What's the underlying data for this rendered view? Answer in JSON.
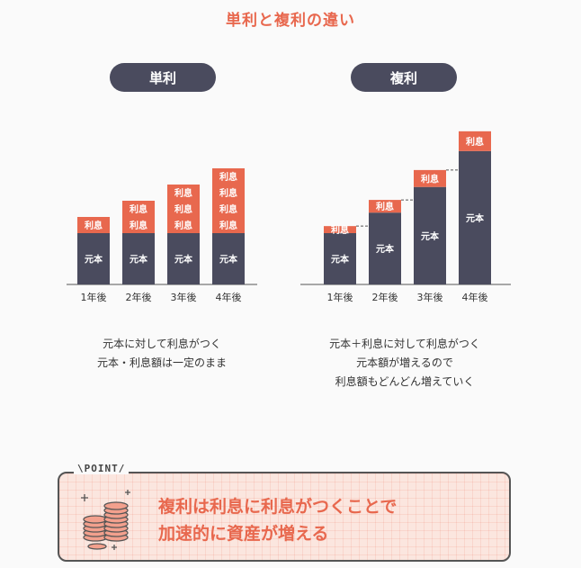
{
  "title": "単利と複利の違い",
  "panels": [
    {
      "label": "単利"
    },
    {
      "label": "複利"
    }
  ],
  "chart_data": [
    {
      "type": "bar",
      "title": "単利",
      "categories": [
        "1年後",
        "2年後",
        "3年後",
        "4年後"
      ],
      "series": [
        {
          "name": "元本",
          "values": [
            1,
            1,
            1,
            1
          ]
        },
        {
          "name": "利息",
          "values": [
            1,
            2,
            3,
            4
          ]
        }
      ],
      "principal_label": "元本",
      "interest_label": "利息"
    },
    {
      "type": "bar",
      "title": "複利",
      "categories": [
        "1年後",
        "2年後",
        "3年後",
        "4年後"
      ],
      "series": [
        {
          "name": "元本",
          "values": [
            1.0,
            1.4,
            1.9,
            2.6
          ]
        },
        {
          "name": "利息",
          "values": [
            0.25,
            0.45,
            0.6,
            0.7
          ]
        }
      ],
      "principal_label": "元本",
      "interest_label": "利息"
    }
  ],
  "captions": {
    "simple": [
      "元本に対して利息がつく",
      "元本・利息額は一定のまま"
    ],
    "compound": [
      "元本＋利息に対して利息がつく",
      "元本額が増えるので",
      "利息額もどんどん増えていく"
    ]
  },
  "point": {
    "label": "\\POINT/",
    "lines": [
      "複利は利息に利息がつくことで",
      "加速的に資産が増える"
    ]
  },
  "colors": {
    "principal": "#4a4b5e",
    "interest": "#e8684e",
    "accent": "#e8684e",
    "point_bg": "#fbe6df"
  }
}
